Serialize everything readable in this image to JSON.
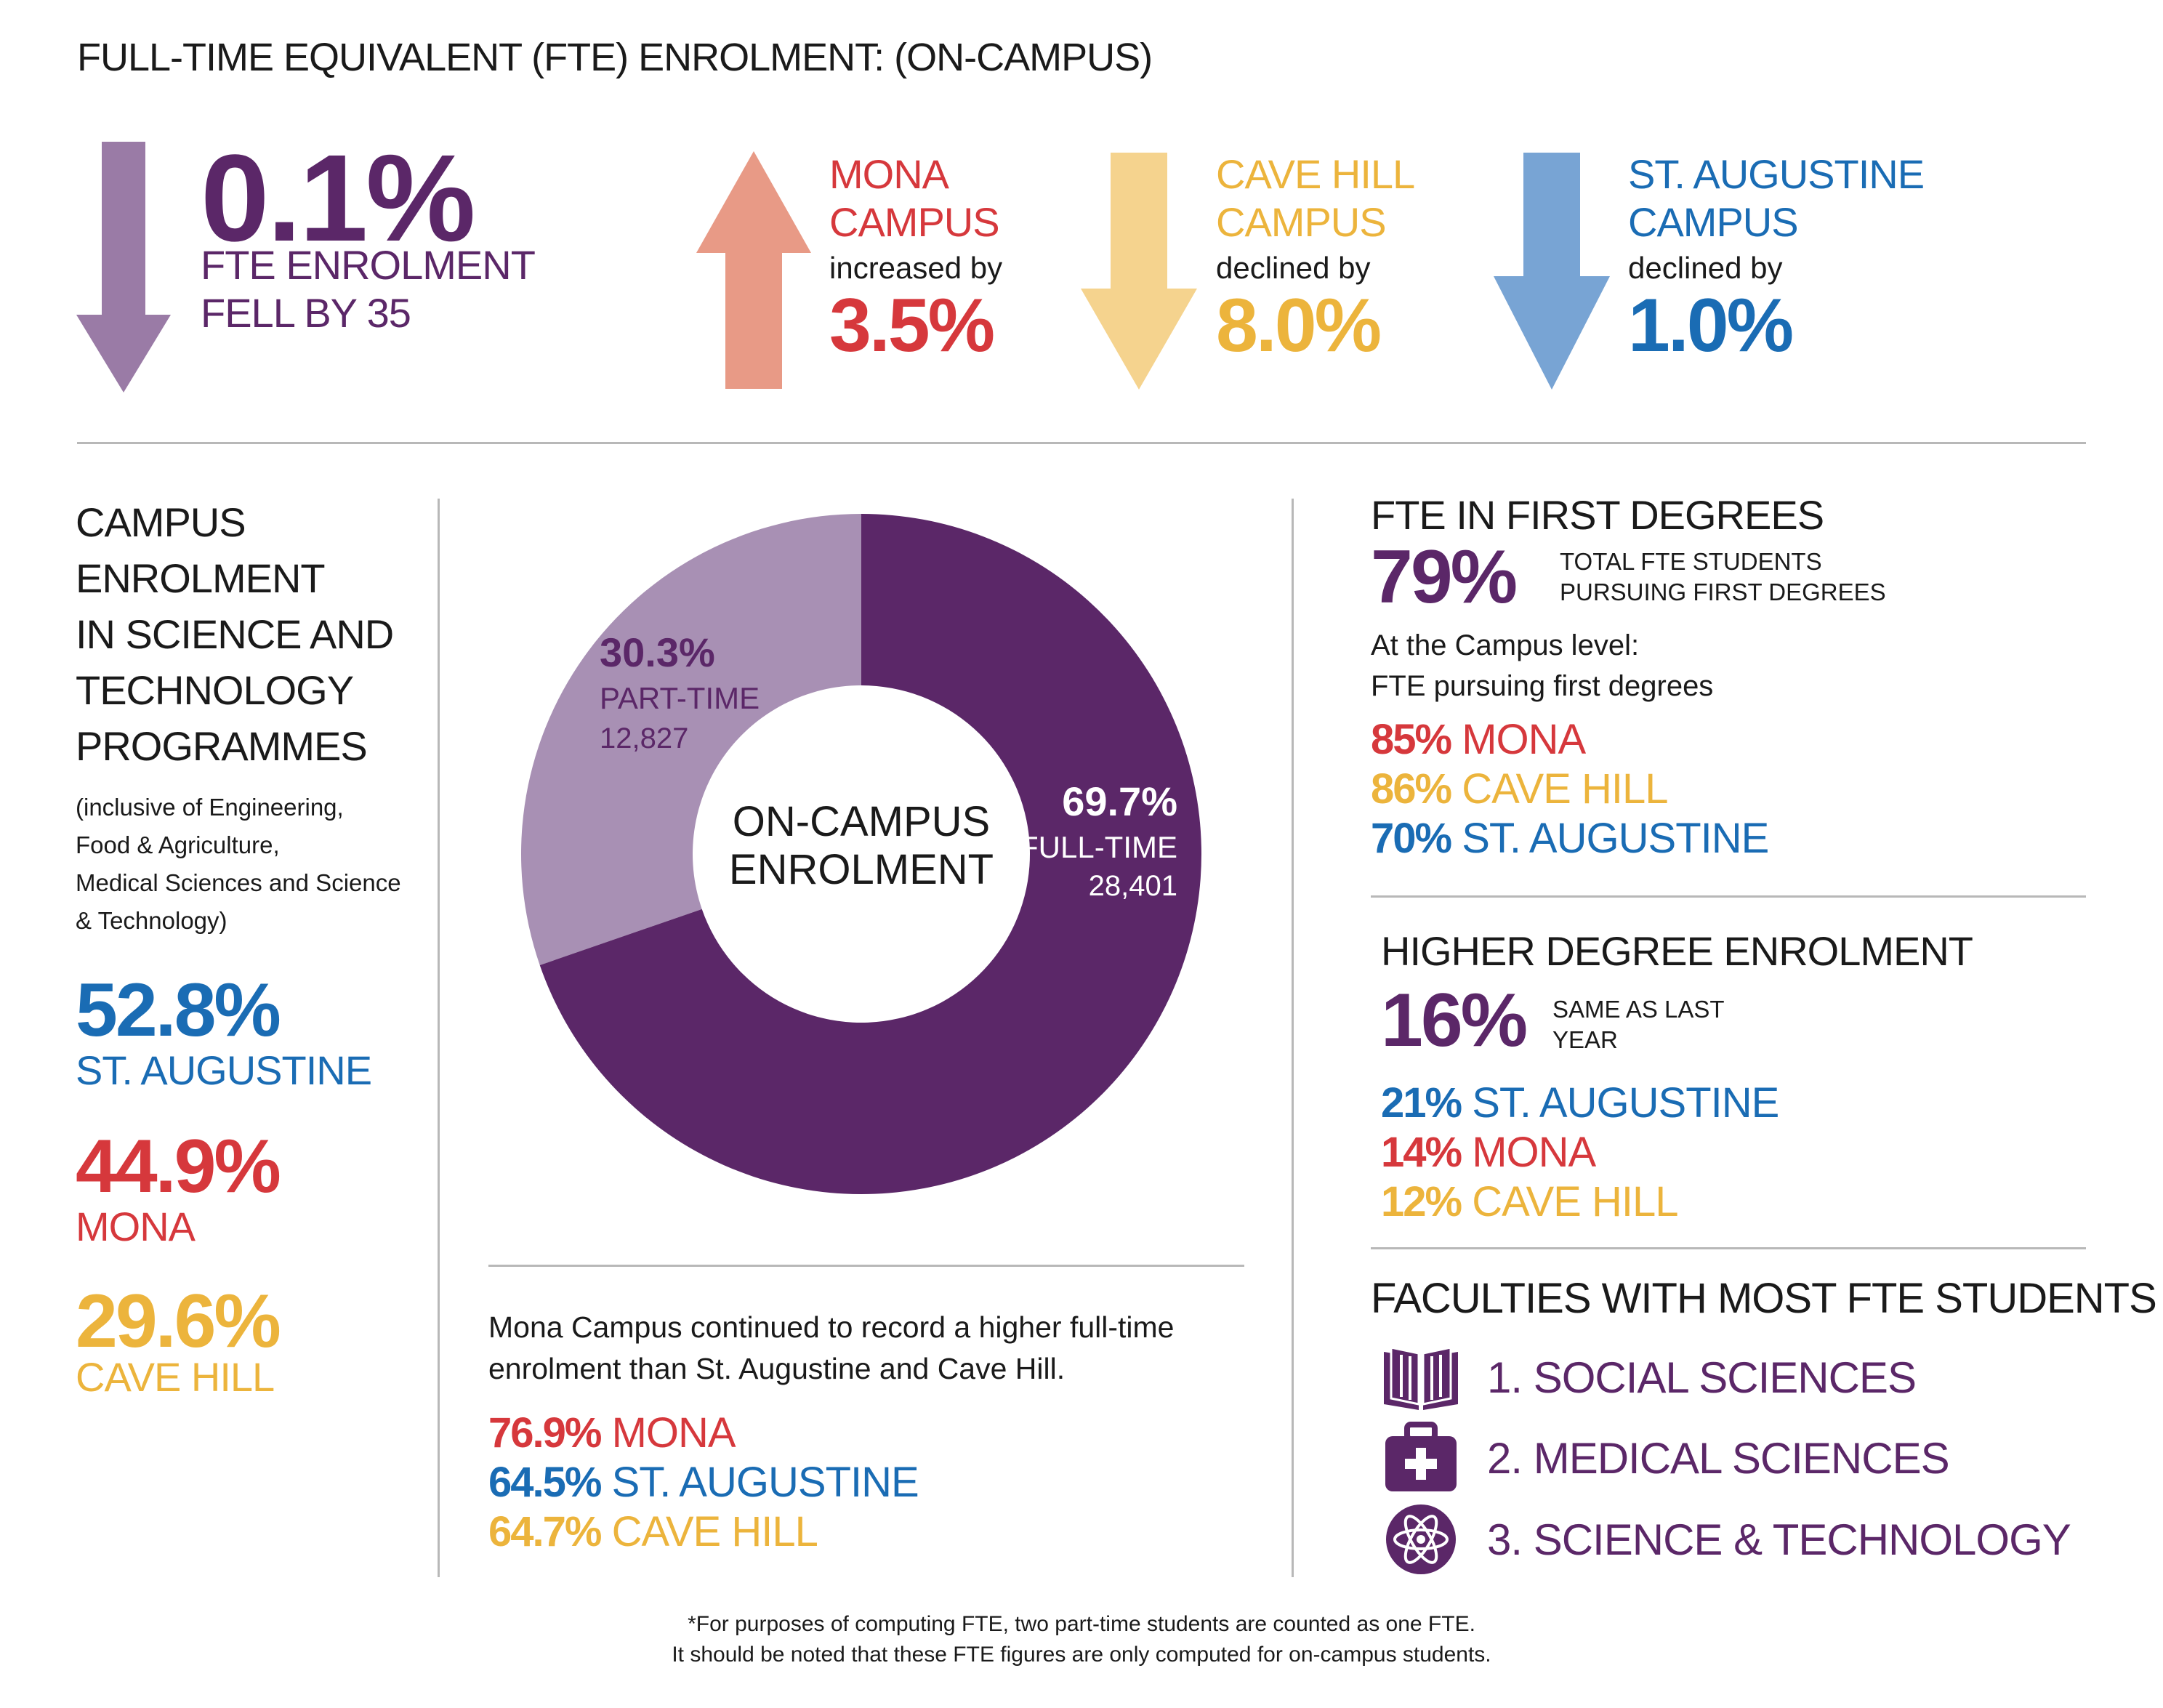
{
  "title": "FULL-TIME EQUIVALENT (FTE) ENROLMENT: (ON-CAMPUS)",
  "colors": {
    "purple": "#5b2768",
    "lilac": "#a890b4",
    "mona": "#d6383c",
    "cave_hill": "#ecb43c",
    "st_augustine": "#1a6cb4",
    "arrow_overall": "#9a7ba6",
    "arrow_mona": "#e89a86",
    "arrow_cave_hill": "#f5d38e",
    "arrow_st_augustine": "#78a4d4"
  },
  "overall": {
    "value": "0.1%",
    "line1": "FTE ENROLMENT",
    "line2": "FELL BY 35",
    "direction": "down"
  },
  "campuses": [
    {
      "name1": "MONA",
      "name2": "CAMPUS",
      "verb": "increased by",
      "value": "3.5%",
      "direction": "up"
    },
    {
      "name1": "CAVE HILL",
      "name2": "CAMPUS",
      "verb": "declined by",
      "value": "8.0%",
      "direction": "down"
    },
    {
      "name1": "ST. AUGUSTINE",
      "name2": "CAMPUS",
      "verb": "declined by",
      "value": "1.0%",
      "direction": "down"
    }
  ],
  "science": {
    "heading": [
      "CAMPUS",
      "ENROLMENT",
      "IN SCIENCE AND",
      "TECHNOLOGY",
      "PROGRAMMES"
    ],
    "note": [
      "(inclusive of Engineering,",
      "Food & Agriculture,",
      "Medical Sciences and Science",
      "& Technology)"
    ],
    "items": [
      {
        "value": "52.8%",
        "name": "ST. AUGUSTINE"
      },
      {
        "value": "44.9%",
        "name": "MONA"
      },
      {
        "value": "29.6%",
        "name": "CAVE HILL"
      }
    ]
  },
  "chart_data": {
    "type": "pie",
    "title": "ON-CAMPUS ENROLMENT",
    "center_label": [
      "ON-CAMPUS",
      "ENROLMENT"
    ],
    "slices": [
      {
        "label": "PART-TIME",
        "percent": 30.3,
        "percent_label": "30.3%",
        "count": "12,827"
      },
      {
        "label": "FULL-TIME",
        "percent": 69.7,
        "percent_label": "69.7%",
        "count": "28,401"
      }
    ]
  },
  "fulltime": {
    "text": [
      "Mona Campus continued to record a higher full-time",
      "enrolment than St. Augustine and Cave Hill."
    ],
    "items": [
      {
        "value": "76.9%",
        "name": "MONA"
      },
      {
        "value": "64.5%",
        "name": "ST. AUGUSTINE"
      },
      {
        "value": "64.7%",
        "name": "CAVE HILL"
      }
    ]
  },
  "first_degrees": {
    "heading": "FTE IN FIRST DEGREES",
    "value": "79%",
    "desc": [
      "TOTAL FTE STUDENTS",
      "PURSUING FIRST DEGREES"
    ],
    "sub": [
      "At the Campus level:",
      "FTE pursuing first degrees"
    ],
    "items": [
      {
        "value": "85%",
        "name": "MONA"
      },
      {
        "value": "86%",
        "name": "CAVE HILL"
      },
      {
        "value": "70%",
        "name": "ST. AUGUSTINE"
      }
    ]
  },
  "higher_degree": {
    "heading": "HIGHER DEGREE ENROLMENT",
    "value": "16%",
    "desc": [
      "SAME AS LAST",
      "YEAR"
    ],
    "items": [
      {
        "value": "21%",
        "name": "ST. AUGUSTINE"
      },
      {
        "value": "14%",
        "name": "MONA"
      },
      {
        "value": "12%",
        "name": "CAVE HILL"
      }
    ]
  },
  "faculties": {
    "heading": "FACULTIES WITH MOST FTE STUDENTS",
    "items": [
      {
        "label": "1.  SOCIAL SCIENCES",
        "icon": "book-icon"
      },
      {
        "label": "2.  MEDICAL SCIENCES",
        "icon": "medical-kit-icon"
      },
      {
        "label": "3.  SCIENCE & TECHNOLOGY",
        "icon": "atom-icon"
      }
    ]
  },
  "footnote": [
    "*For purposes of computing FTE, two part-time students are counted as one FTE.",
    "It should be noted that these FTE figures are only computed for on-campus students."
  ]
}
